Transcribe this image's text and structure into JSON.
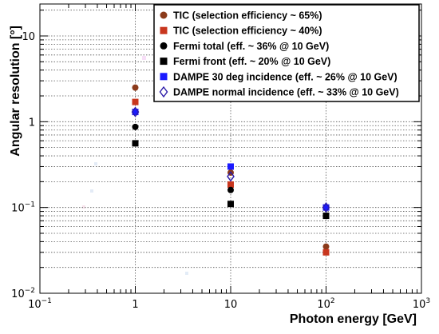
{
  "chart_data": {
    "type": "scatter",
    "title": "",
    "xlabel": "Photon energy [GeV]",
    "ylabel": "Angular resolution [°]",
    "xscale": "log",
    "yscale": "log",
    "xlim": [
      0.1,
      1000
    ],
    "ylim": [
      0.01,
      20
    ],
    "x_ticks": [
      {
        "base": "10",
        "exp": "−1"
      },
      {
        "base": "1",
        "exp": ""
      },
      {
        "base": "10",
        "exp": ""
      },
      {
        "base": "10",
        "exp": "2"
      },
      {
        "base": "10",
        "exp": "3"
      }
    ],
    "y_ticks": [
      {
        "base": "10",
        "exp": "−2"
      },
      {
        "base": "10",
        "exp": "−1"
      },
      {
        "base": "1",
        "exp": ""
      },
      {
        "base": "10",
        "exp": ""
      }
    ],
    "grid": true,
    "legend_position": "top-right",
    "series": [
      {
        "name": "TIC (selection efficiency ~ 65%)",
        "marker": "circle",
        "color": "#8b3a1a",
        "points": [
          [
            1,
            2.5
          ],
          [
            10,
            0.255
          ],
          [
            100,
            0.035
          ]
        ]
      },
      {
        "name": "TIC (selection efficiency ~ 40%)",
        "marker": "square",
        "color": "#c8361e",
        "points": [
          [
            1,
            1.7
          ],
          [
            10,
            0.185
          ],
          [
            100,
            0.03
          ]
        ]
      },
      {
        "name": "Fermi total (eff. ~ 36% @ 10 GeV)",
        "marker": "circle",
        "color": "#000000",
        "points": [
          [
            1,
            0.87
          ],
          [
            10,
            0.16
          ],
          [
            100,
            0.1
          ]
        ]
      },
      {
        "name": "Fermi front (eff. ~ 20% @ 10 GeV)",
        "marker": "square",
        "color": "#000000",
        "points": [
          [
            1,
            0.56
          ],
          [
            10,
            0.11
          ],
          [
            100,
            0.08
          ]
        ]
      },
      {
        "name": "DAMPE 30 deg incidence (eff. ~ 26% @ 10 GeV)",
        "marker": "square",
        "color": "#1a1aff",
        "points": [
          [
            1,
            1.3
          ],
          [
            10,
            0.3
          ],
          [
            100,
            0.1
          ]
        ]
      },
      {
        "name": "DAMPE normal incidence (eff. ~ 33% @ 10 GeV)",
        "marker": "diamond-open",
        "color": "#2a1aa8",
        "points": [
          [
            1,
            1.3
          ],
          [
            10,
            0.23
          ],
          [
            100,
            0.1
          ]
        ]
      }
    ]
  }
}
